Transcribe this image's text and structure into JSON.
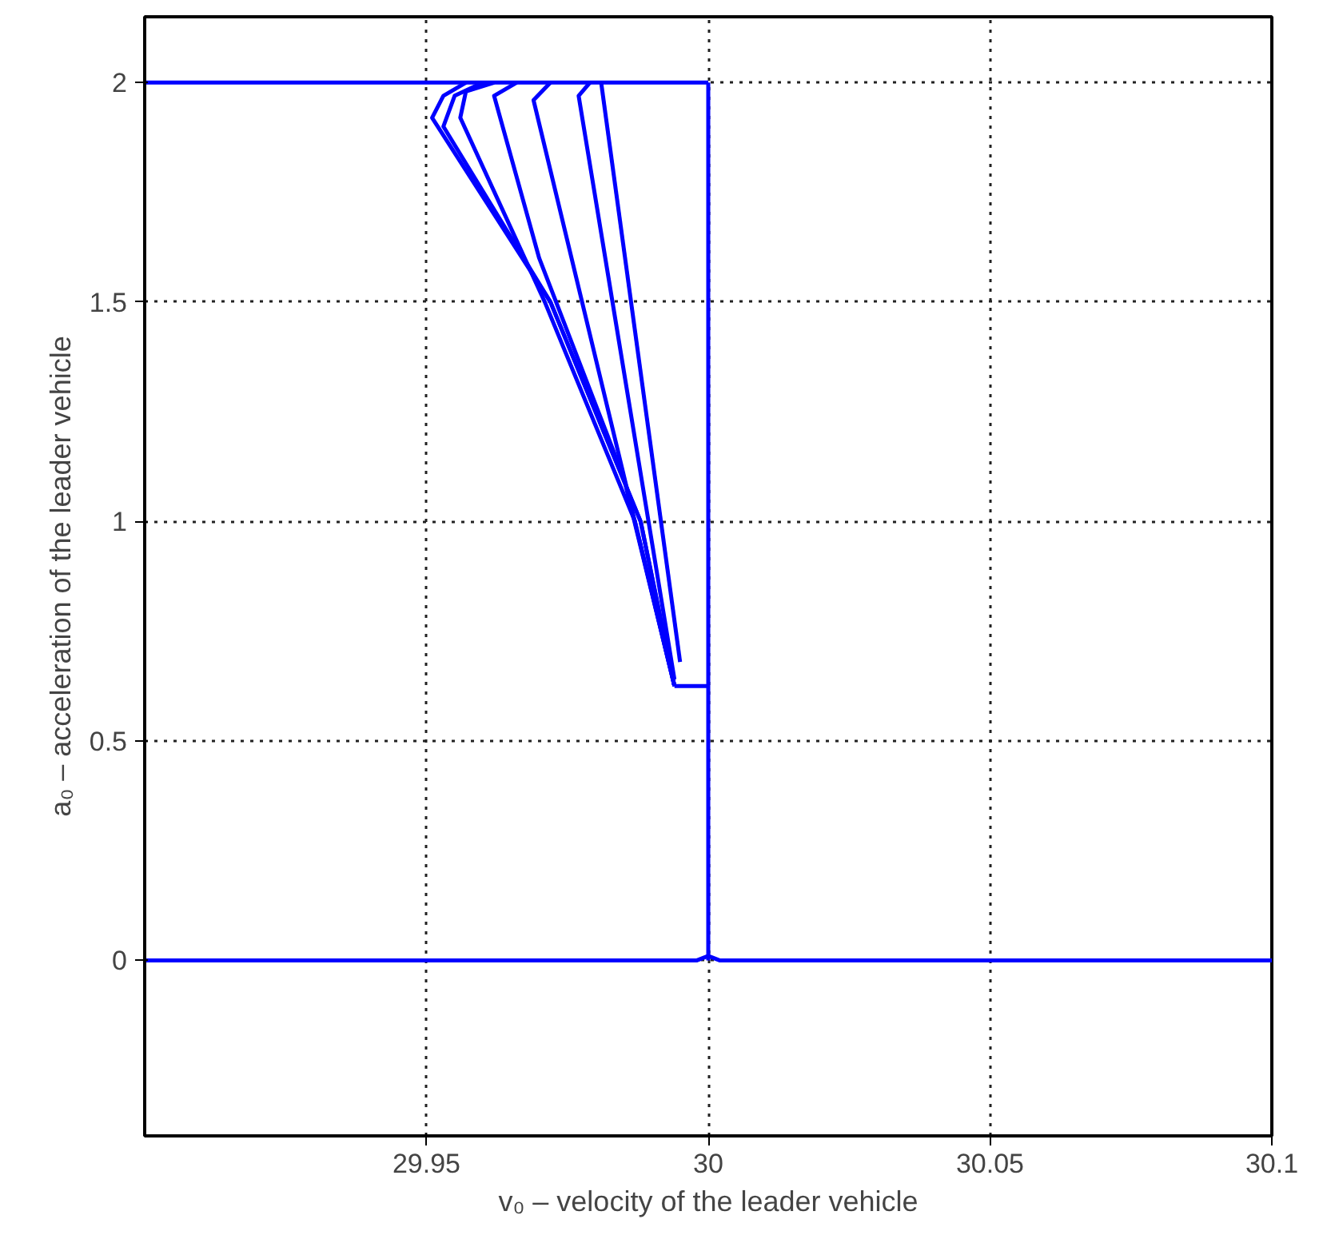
{
  "chart_data": {
    "type": "line",
    "xlabel": "v₀ – velocity of the leader vehicle",
    "ylabel": "a₀ – acceleration of the leader vehicle",
    "xlim": [
      29.9,
      30.1
    ],
    "ylim": [
      -0.4,
      2.15
    ],
    "xticks": [
      29.95,
      30,
      30.05,
      30.1
    ],
    "yticks": [
      0,
      0.5,
      1,
      1.5,
      2
    ],
    "grid": true,
    "line_style": "solid",
    "series": [
      {
        "color": "#0000ff",
        "x": [
          29.9,
          29.998,
          30,
          30.002,
          30.1
        ],
        "values": [
          0,
          0,
          0.01,
          0,
          0
        ]
      },
      {
        "color": "#0000ff",
        "x": [
          30,
          30
        ],
        "values": [
          0,
          2
        ]
      },
      {
        "color": "#0000ff",
        "x": [
          29.9,
          30
        ],
        "values": [
          2,
          2
        ]
      },
      {
        "color": "#0000ff",
        "x": [
          30,
          29.994
        ],
        "values": [
          0.625,
          0.625
        ]
      },
      {
        "color": "#0000ff",
        "x": [
          29.994,
          29.988,
          29.972,
          29.951,
          29.953,
          29.957
        ],
        "values": [
          0.625,
          1.0,
          1.5,
          1.92,
          1.97,
          2.0
        ]
      },
      {
        "color": "#0000ff",
        "x": [
          29.994,
          29.988,
          29.972,
          29.953,
          29.955,
          29.96
        ],
        "values": [
          0.625,
          1.0,
          1.5,
          1.9,
          1.97,
          2.0
        ]
      },
      {
        "color": "#0000ff",
        "x": [
          29.994,
          29.987,
          29.971,
          29.956,
          29.957,
          29.962
        ],
        "values": [
          0.625,
          1.0,
          1.5,
          1.92,
          1.98,
          2.0
        ]
      },
      {
        "color": "#0000ff",
        "x": [
          29.994,
          29.985,
          29.97,
          29.962,
          29.966
        ],
        "values": [
          0.625,
          1.1,
          1.6,
          1.97,
          2.0
        ]
      },
      {
        "color": "#0000ff",
        "x": [
          29.994,
          29.969,
          29.972
        ],
        "values": [
          0.625,
          1.96,
          2.0
        ]
      },
      {
        "color": "#0000ff",
        "x": [
          29.994,
          29.977,
          29.979
        ],
        "values": [
          0.64,
          1.97,
          2.0
        ]
      },
      {
        "color": "#0000ff",
        "x": [
          29.995,
          29.981
        ],
        "values": [
          0.68,
          2.0
        ]
      }
    ]
  }
}
